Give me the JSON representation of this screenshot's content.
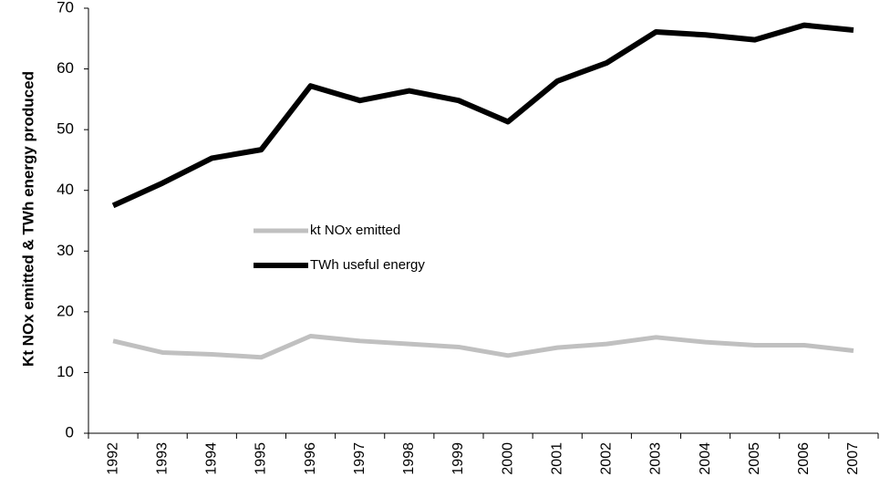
{
  "chart_data": {
    "type": "line",
    "y_label": "Kt NOx emitted & TWh energy produced",
    "categories": [
      "1992",
      "1993",
      "1994",
      "1995",
      "1996",
      "1997",
      "1998",
      "1999",
      "2000",
      "2001",
      "2002",
      "2003",
      "2004",
      "2005",
      "2006",
      "2007"
    ],
    "series": [
      {
        "name": "kt NOx emitted",
        "color": "#c0c0c0",
        "values": [
          15.2,
          13.3,
          13.0,
          12.5,
          16.0,
          15.2,
          14.7,
          14.2,
          12.8,
          14.1,
          14.7,
          15.8,
          15.0,
          14.5,
          14.5,
          13.6
        ]
      },
      {
        "name": "TWh useful energy",
        "color": "#000000",
        "values": [
          37.5,
          41.2,
          45.3,
          46.7,
          57.2,
          54.8,
          56.4,
          54.8,
          51.3,
          58.0,
          61.0,
          66.1,
          65.6,
          64.8,
          67.2,
          66.4
        ]
      }
    ],
    "ylim": [
      0,
      70
    ],
    "yticks": [
      0,
      10,
      20,
      30,
      40,
      50,
      60,
      70
    ],
    "grid": false
  }
}
